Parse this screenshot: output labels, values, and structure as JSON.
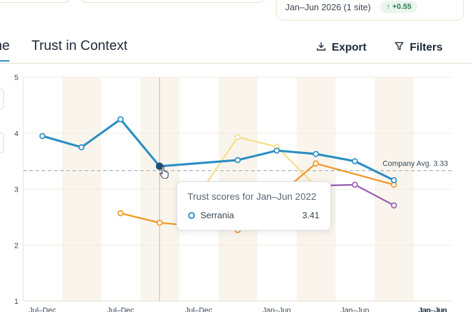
{
  "summary": {
    "range": "Jan–Jun 2026 (1 site)",
    "delta": "↑ +0.55",
    "colors": {
      "delta_text": "#2e7d4f",
      "delta_bg": "#eaf5ee"
    }
  },
  "tabs": [
    {
      "label": "ne",
      "active": true
    },
    {
      "label": "Trust in Context",
      "active": false
    }
  ],
  "toolbar": {
    "export_label": "Export",
    "filters_label": "Filters"
  },
  "tooltip": {
    "title": "Trust scores for Jan–Jun 2022",
    "series": "Serrania",
    "value": "3.41"
  },
  "chart_data": {
    "type": "line",
    "ylim": [
      1,
      5
    ],
    "yticks": [
      "1",
      "2",
      "3",
      "4",
      "5"
    ],
    "x_tick_labels": [
      "Jul–Dec",
      "Jul–Dec",
      "Jul–Dec",
      "Jan–Jun",
      "Jan–Jun",
      "Jan–Jun"
    ],
    "x": [
      0,
      1,
      2,
      3,
      4,
      5,
      6,
      7,
      8,
      9
    ],
    "reference_line": {
      "label": "Company Avg. 3.33",
      "value": 3.33
    },
    "series": [
      {
        "name": "Serrania",
        "color": "#2c8fc4",
        "values": [
          3.95,
          3.75,
          4.25,
          3.41,
          null,
          3.52,
          3.69,
          3.63,
          3.5,
          3.16
        ]
      },
      {
        "name": "",
        "color": "#f6df8c",
        "values": [
          null,
          null,
          null,
          null,
          2.9,
          3.93,
          3.76,
          3.05,
          null,
          null
        ]
      },
      {
        "name": "",
        "color": "#f09a2e",
        "values": [
          null,
          null,
          2.57,
          2.4,
          null,
          2.27,
          null,
          3.46,
          null,
          3.08
        ]
      },
      {
        "name": "",
        "color": "#9b63b8",
        "values": [
          null,
          null,
          null,
          null,
          null,
          null,
          null,
          3.06,
          3.08,
          2.71
        ]
      }
    ]
  }
}
